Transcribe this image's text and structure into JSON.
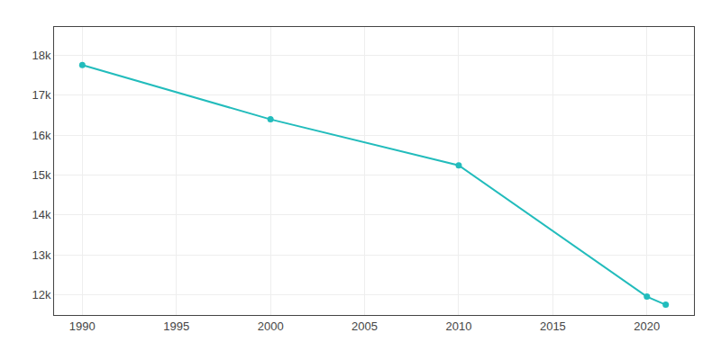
{
  "chart_data": {
    "type": "line",
    "x": [
      1990,
      2000,
      2010,
      2020,
      2021
    ],
    "values": [
      17750,
      16391,
      15241,
      11960,
      11756
    ],
    "color": "#22BCBC",
    "marker": "circle",
    "xlim": [
      1988.5,
      2022.5
    ],
    "ylim": [
      11500,
      18700
    ],
    "xticks": [
      1990,
      1995,
      2000,
      2005,
      2010,
      2015,
      2020
    ],
    "yticks": [
      {
        "value": 12000,
        "label": "12k"
      },
      {
        "value": 13000,
        "label": "13k"
      },
      {
        "value": 14000,
        "label": "14k"
      },
      {
        "value": 15000,
        "label": "15k"
      },
      {
        "value": 16000,
        "label": "16k"
      },
      {
        "value": 17000,
        "label": "17k"
      },
      {
        "value": 18000,
        "label": "18k"
      }
    ],
    "grid": true
  }
}
